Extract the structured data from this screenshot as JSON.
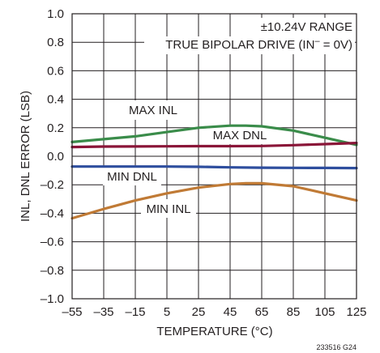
{
  "chart_data": {
    "type": "line",
    "xlabel": "TEMPERATURE (°C)",
    "ylabel": "INL, DNL ERROR (LSB)",
    "xlim": [
      -55,
      125
    ],
    "ylim": [
      -1.0,
      1.0
    ],
    "x_ticks": [
      -55,
      -35,
      -15,
      5,
      25,
      45,
      65,
      85,
      105,
      125
    ],
    "x_tick_labels": [
      "–55",
      "–35",
      "–15",
      "5",
      "25",
      "45",
      "65",
      "85",
      "105",
      "125"
    ],
    "y_ticks": [
      -1.0,
      -0.8,
      -0.6,
      -0.4,
      -0.2,
      0.0,
      0.2,
      0.4,
      0.6,
      0.8,
      1.0
    ],
    "y_tick_labels": [
      "–1.0",
      "–0.8",
      "–0.6",
      "–0.4",
      "–0.2",
      "0.0",
      "0.2",
      "0.4",
      "0.6",
      "0.8",
      "1.0"
    ],
    "grid": true,
    "annotation_lines": [
      "±10.24V RANGE",
      "TRUE BIPOLAR DRIVE (IN",
      "–",
      " = 0V)"
    ],
    "figure_id": "233516 G24",
    "series": [
      {
        "name": "MAX INL",
        "color": "#3a8c4a",
        "x": [
          -55,
          -35,
          -15,
          5,
          25,
          45,
          55,
          65,
          85,
          105,
          125
        ],
        "y": [
          0.1,
          0.12,
          0.14,
          0.17,
          0.2,
          0.215,
          0.215,
          0.21,
          0.18,
          0.13,
          0.08
        ]
      },
      {
        "name": "MAX DNL",
        "color": "#8a1538",
        "x": [
          -55,
          -35,
          -15,
          5,
          25,
          45,
          65,
          85,
          105,
          125
        ],
        "y": [
          0.065,
          0.068,
          0.069,
          0.07,
          0.071,
          0.071,
          0.072,
          0.078,
          0.085,
          0.093
        ]
      },
      {
        "name": "MIN DNL",
        "color": "#2e4e9e",
        "x": [
          -55,
          -35,
          -15,
          5,
          25,
          45,
          65,
          85,
          105,
          125
        ],
        "y": [
          -0.072,
          -0.072,
          -0.072,
          -0.072,
          -0.074,
          -0.078,
          -0.08,
          -0.081,
          -0.082,
          -0.083
        ]
      },
      {
        "name": "MIN INL",
        "color": "#c07a35",
        "x": [
          -55,
          -35,
          -15,
          5,
          25,
          45,
          55,
          65,
          85,
          105,
          125
        ],
        "y": [
          -0.435,
          -0.37,
          -0.31,
          -0.26,
          -0.22,
          -0.195,
          -0.19,
          -0.19,
          -0.21,
          -0.26,
          -0.31
        ]
      }
    ]
  }
}
